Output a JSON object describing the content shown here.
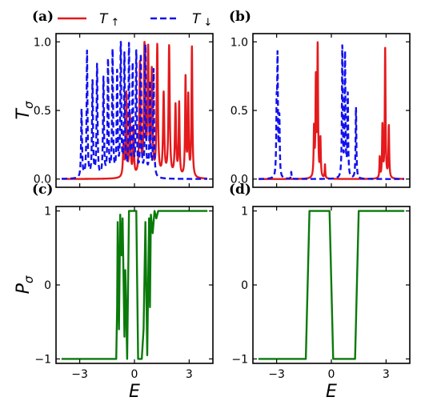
{
  "chart_data": [
    {
      "id": "a",
      "panel_label": "(a)",
      "type": "line",
      "xlim": [
        -4.3,
        4.3
      ],
      "ylim": [
        -0.06,
        1.06
      ],
      "ylabel": "T",
      "ylabel_sub": "σ",
      "xticks": [
        -3,
        0,
        3
      ],
      "show_xtick_labels": false,
      "yticks": [
        0.0,
        0.5,
        1.0
      ],
      "ytick_labels": [
        "0.0",
        "0.5",
        "1.0"
      ],
      "series": [
        {
          "name": "T↑",
          "color": "#e41a1c",
          "style": "solid",
          "peaks": [
            [
              -0.6,
              0.22,
              0.04
            ],
            [
              -0.45,
              0.6,
              0.03
            ],
            [
              -0.25,
              0.45,
              0.04
            ],
            [
              -0.05,
              0.35,
              0.03
            ],
            [
              0.3,
              0.82,
              0.04
            ],
            [
              0.55,
              0.95,
              0.04
            ],
            [
              0.75,
              0.9,
              0.04
            ],
            [
              0.95,
              0.75,
              0.04
            ],
            [
              1.25,
              0.95,
              0.04
            ],
            [
              1.6,
              0.6,
              0.04
            ],
            [
              1.9,
              0.95,
              0.04
            ],
            [
              2.25,
              0.52,
              0.04
            ],
            [
              2.45,
              0.53,
              0.03
            ],
            [
              2.8,
              0.72,
              0.03
            ],
            [
              2.95,
              0.58,
              0.03
            ],
            [
              3.15,
              0.95,
              0.03
            ]
          ]
        },
        {
          "name": "T↓",
          "color": "#1111ee",
          "style": "dashed",
          "peaks": [
            [
              -2.9,
              0.5,
              0.03
            ],
            [
              -2.6,
              0.92,
              0.03
            ],
            [
              -2.3,
              0.7,
              0.03
            ],
            [
              -2.05,
              0.82,
              0.03
            ],
            [
              -1.7,
              0.72,
              0.03
            ],
            [
              -1.45,
              0.85,
              0.03
            ],
            [
              -1.2,
              0.92,
              0.03
            ],
            [
              -0.95,
              0.75,
              0.03
            ],
            [
              -0.75,
              1.0,
              0.03
            ],
            [
              -0.55,
              0.88,
              0.03
            ],
            [
              -0.3,
              0.95,
              0.03
            ],
            [
              -0.1,
              0.8,
              0.03
            ],
            [
              0.1,
              0.9,
              0.03
            ],
            [
              0.35,
              0.88,
              0.03
            ],
            [
              0.6,
              0.95,
              0.03
            ],
            [
              0.85,
              0.68,
              0.03
            ],
            [
              1.05,
              0.78,
              0.03
            ]
          ]
        }
      ]
    },
    {
      "id": "b",
      "panel_label": "(b)",
      "type": "line",
      "xlim": [
        -4.3,
        4.3
      ],
      "ylim": [
        -0.06,
        1.06
      ],
      "xticks": [
        -3,
        0,
        3
      ],
      "show_xtick_labels": false,
      "yticks": [
        0.0,
        0.5,
        1.0
      ],
      "ytick_labels": [
        "0.0",
        "0.5",
        "1.0"
      ],
      "series": [
        {
          "name": "T↑",
          "color": "#e41a1c",
          "style": "solid",
          "peaks": [
            [
              -0.95,
              0.35,
              0.025
            ],
            [
              -0.85,
              0.7,
              0.025
            ],
            [
              -0.75,
              0.95,
              0.025
            ],
            [
              -0.6,
              0.28,
              0.025
            ],
            [
              -0.35,
              0.1,
              0.02
            ],
            [
              2.65,
              0.15,
              0.02
            ],
            [
              2.8,
              0.38,
              0.025
            ],
            [
              2.95,
              0.95,
              0.025
            ],
            [
              3.15,
              0.38,
              0.025
            ]
          ]
        },
        {
          "name": "T↓",
          "color": "#1111ee",
          "style": "dashed",
          "peaks": [
            [
              -3.0,
              0.45,
              0.025
            ],
            [
              -2.95,
              0.82,
              0.025
            ],
            [
              -2.85,
              0.42,
              0.025
            ],
            [
              -2.2,
              0.05,
              0.02
            ],
            [
              0.6,
              0.95,
              0.025
            ],
            [
              0.75,
              0.9,
              0.025
            ],
            [
              0.9,
              0.6,
              0.025
            ],
            [
              1.35,
              0.52,
              0.025
            ]
          ]
        }
      ]
    },
    {
      "id": "c",
      "panel_label": "(c)",
      "type": "line",
      "xlim": [
        -4.3,
        4.3
      ],
      "ylim": [
        -1.06,
        1.06
      ],
      "ylabel": "P",
      "ylabel_sub": "σ",
      "xlabel": "E",
      "xticks": [
        -3,
        0,
        3
      ],
      "xtick_labels": [
        "−3",
        "0",
        "3"
      ],
      "yticks": [
        -1,
        0,
        1
      ],
      "ytick_labels": [
        "−1",
        "0",
        "1"
      ],
      "series": [
        {
          "name": "",
          "color": "#0a7a0a",
          "style": "solid",
          "x": [
            -4.0,
            -1.0,
            -0.95,
            -0.92,
            -0.85,
            -0.78,
            -0.7,
            -0.65,
            -0.55,
            -0.5,
            -0.4,
            -0.3,
            -0.2,
            0.0,
            0.1,
            0.2,
            0.3,
            0.4,
            0.5,
            0.6,
            0.7,
            0.8,
            0.85,
            0.9,
            1.0,
            1.1,
            1.2,
            1.3,
            4.0
          ],
          "y": [
            -1.0,
            -1.0,
            -0.3,
            0.85,
            -0.6,
            0.95,
            0.4,
            0.9,
            -0.7,
            0.2,
            -1.0,
            1.0,
            1.0,
            1.0,
            1.0,
            -1.0,
            -1.0,
            -1.0,
            -0.6,
            0.85,
            -0.95,
            0.9,
            -0.3,
            0.95,
            0.7,
            1.0,
            0.9,
            1.0,
            1.0
          ]
        }
      ]
    },
    {
      "id": "d",
      "panel_label": "(d)",
      "type": "line",
      "xlim": [
        -4.3,
        4.3
      ],
      "ylim": [
        -1.06,
        1.06
      ],
      "xlabel": "E",
      "xticks": [
        -3,
        0,
        3
      ],
      "xtick_labels": [
        "−3",
        "0",
        "3"
      ],
      "yticks": [
        -1,
        0,
        1
      ],
      "ytick_labels": [
        "−1",
        "0",
        "1"
      ],
      "series": [
        {
          "name": "",
          "color": "#0a7a0a",
          "style": "solid",
          "x": [
            -4.0,
            -1.4,
            -1.3,
            -1.2,
            -0.1,
            0.0,
            0.1,
            0.2,
            1.3,
            1.4,
            1.5,
            4.0
          ],
          "y": [
            -1.0,
            -1.0,
            0.0,
            1.0,
            1.0,
            0.0,
            -1.0,
            -1.0,
            -1.0,
            0.0,
            1.0,
            1.0
          ]
        }
      ]
    }
  ],
  "legend": {
    "placement": "top",
    "entries": [
      {
        "label": "T",
        "sub": "↑",
        "color": "#e41a1c",
        "style": "solid"
      },
      {
        "label": "T",
        "sub": "↓",
        "color": "#1111ee",
        "style": "dashed"
      }
    ]
  }
}
